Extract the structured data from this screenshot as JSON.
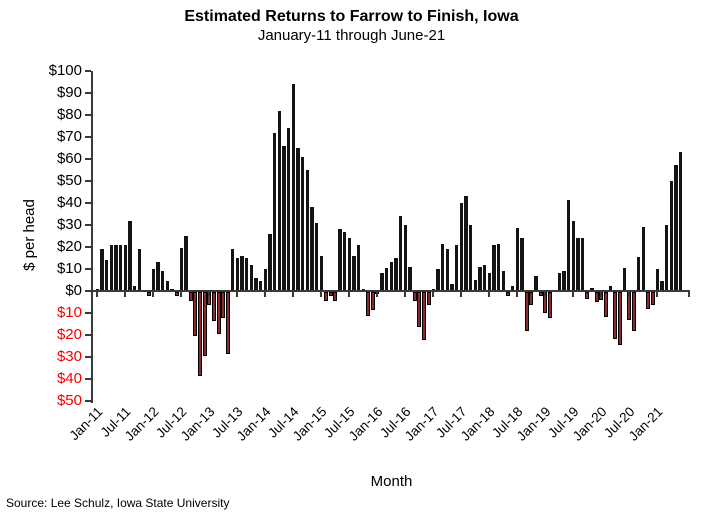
{
  "title": "Estimated Returns to Farrow to Finish, Iowa",
  "subtitle": "January-11 through June-21",
  "source": "Source: Lee Schulz, Iowa State University",
  "colors": {
    "positive_bar": "#141414",
    "negative_bar_fill": "#8e2a2b",
    "negative_bar_border": "#000000",
    "axis": "#3a3a3a",
    "negative_tick_label": "#f40000",
    "positive_tick_label": "#000000"
  },
  "chart_data": {
    "type": "bar",
    "title": "Estimated Returns to Farrow to Finish, Iowa",
    "subtitle": "January-11 through June-21",
    "xlabel": "Month",
    "ylabel": "$ per head",
    "ylim": [
      -50,
      100
    ],
    "grid": false,
    "legend": false,
    "frequency": "monthly",
    "x_start": "Jan-2011",
    "x_end": "Jun-2021",
    "y_ticks": [
      {
        "text": "$100",
        "value": 100
      },
      {
        "text": "$90",
        "value": 90
      },
      {
        "text": "$80",
        "value": 80
      },
      {
        "text": "$70",
        "value": 70
      },
      {
        "text": "$60",
        "value": 60
      },
      {
        "text": "$50",
        "value": 50
      },
      {
        "text": "$40",
        "value": 40
      },
      {
        "text": "$30",
        "value": 30
      },
      {
        "text": "$20",
        "value": 20
      },
      {
        "text": "$10",
        "value": 10
      },
      {
        "text": "$0",
        "value": 0
      },
      {
        "text": "$10",
        "value": -10
      },
      {
        "text": "$20",
        "value": -20
      },
      {
        "text": "$30",
        "value": -30
      },
      {
        "text": "$40",
        "value": -40
      },
      {
        "text": "$50",
        "value": -50
      }
    ],
    "x_ticks": [
      {
        "text": "Jan-11",
        "month_index": 0
      },
      {
        "text": "Jul-11",
        "month_index": 6
      },
      {
        "text": "Jan-12",
        "month_index": 12
      },
      {
        "text": "Jul-12",
        "month_index": 18
      },
      {
        "text": "Jan-13",
        "month_index": 24
      },
      {
        "text": "Jul-13",
        "month_index": 30
      },
      {
        "text": "Jan-14",
        "month_index": 36
      },
      {
        "text": "Jul-14",
        "month_index": 42
      },
      {
        "text": "Jan-15",
        "month_index": 48
      },
      {
        "text": "Jul-15",
        "month_index": 54
      },
      {
        "text": "Jan-16",
        "month_index": 60
      },
      {
        "text": "Jul-16",
        "month_index": 66
      },
      {
        "text": "Jan-17",
        "month_index": 72
      },
      {
        "text": "Jul-17",
        "month_index": 78
      },
      {
        "text": "Jan-18",
        "month_index": 84
      },
      {
        "text": "Jul-18",
        "month_index": 90
      },
      {
        "text": "Jan-19",
        "month_index": 96
      },
      {
        "text": "Jul-19",
        "month_index": 102
      },
      {
        "text": "Jan-20",
        "month_index": 108
      },
      {
        "text": "Jul-20",
        "month_index": 114
      },
      {
        "text": "Jan-21",
        "month_index": 120
      }
    ],
    "series": [
      {
        "name": "Estimated returns to farrow to finish ($ per head)",
        "values": [
          1,
          19,
          14,
          21,
          21,
          21,
          21,
          32,
          2.5,
          19,
          0.5,
          -2,
          10,
          13,
          9,
          4.5,
          1,
          -2,
          19.5,
          25,
          -4,
          -20,
          -38,
          -29,
          -6,
          -13,
          -19,
          -12,
          -28,
          19,
          15,
          16,
          15,
          12,
          6,
          4.5,
          10,
          26,
          72,
          82,
          66,
          74,
          94,
          65,
          61,
          55,
          38,
          31,
          16,
          -4,
          -2,
          -4,
          28,
          27,
          24,
          16,
          21,
          1,
          -11,
          -8,
          -1,
          8,
          10.5,
          13,
          15,
          34,
          30,
          11,
          -4,
          -16,
          -22,
          -6,
          1,
          10,
          21.5,
          19,
          3,
          21,
          40,
          43,
          30,
          5,
          11,
          12,
          8,
          21,
          21.5,
          9,
          -2,
          2.5,
          28.5,
          24,
          -17.5,
          -6,
          7,
          -2,
          -9.5,
          -12,
          0.5,
          8,
          9,
          41.5,
          32,
          24,
          24,
          -3,
          1.5,
          -4.5,
          -3.5,
          -11.5,
          2.5,
          -21.5,
          -24,
          10.5,
          -12.5,
          -17.5,
          15.5,
          29,
          -7.5,
          -6,
          10,
          4.5,
          30,
          50,
          57.5,
          63
        ]
      }
    ]
  }
}
